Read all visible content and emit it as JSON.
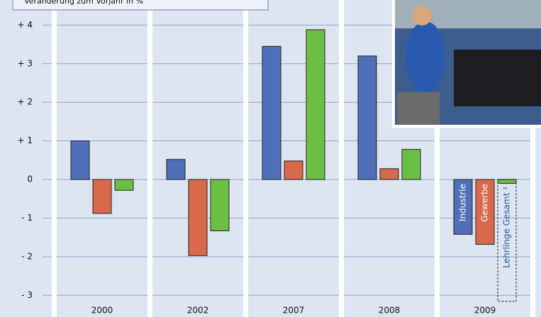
{
  "chart_data": {
    "type": "bar",
    "title": "Veränderung zum Vorjahr in %",
    "categories": [
      "2000",
      "2002",
      "2007",
      "2008",
      "2009"
    ],
    "series": [
      {
        "name": "Industrie",
        "color": "#4f6fb8",
        "values": [
          1.0,
          0.52,
          3.45,
          3.2,
          -1.42
        ]
      },
      {
        "name": "Gewerbe",
        "color": "#d9694a",
        "values": [
          -0.88,
          -1.97,
          0.48,
          0.28,
          -1.68
        ]
      },
      {
        "name": "Lehrlinge Gesamt ²",
        "color": "#6cbf45",
        "values": [
          -0.28,
          -1.33,
          3.88,
          0.78,
          -0.1
        ]
      }
    ],
    "ylim": [
      -3.25,
      4.65
    ],
    "yticks": [
      {
        "value": -3,
        "label": "- 3"
      },
      {
        "value": -2,
        "label": "- 2"
      },
      {
        "value": -1,
        "label": "- 1"
      },
      0,
      {
        "value": 1,
        "label": "+ 1"
      },
      {
        "value": 2,
        "label": "+ 2"
      },
      {
        "value": 3,
        "label": "+ 3"
      },
      {
        "value": 4,
        "label": "+ 4"
      }
    ],
    "grid": true
  }
}
